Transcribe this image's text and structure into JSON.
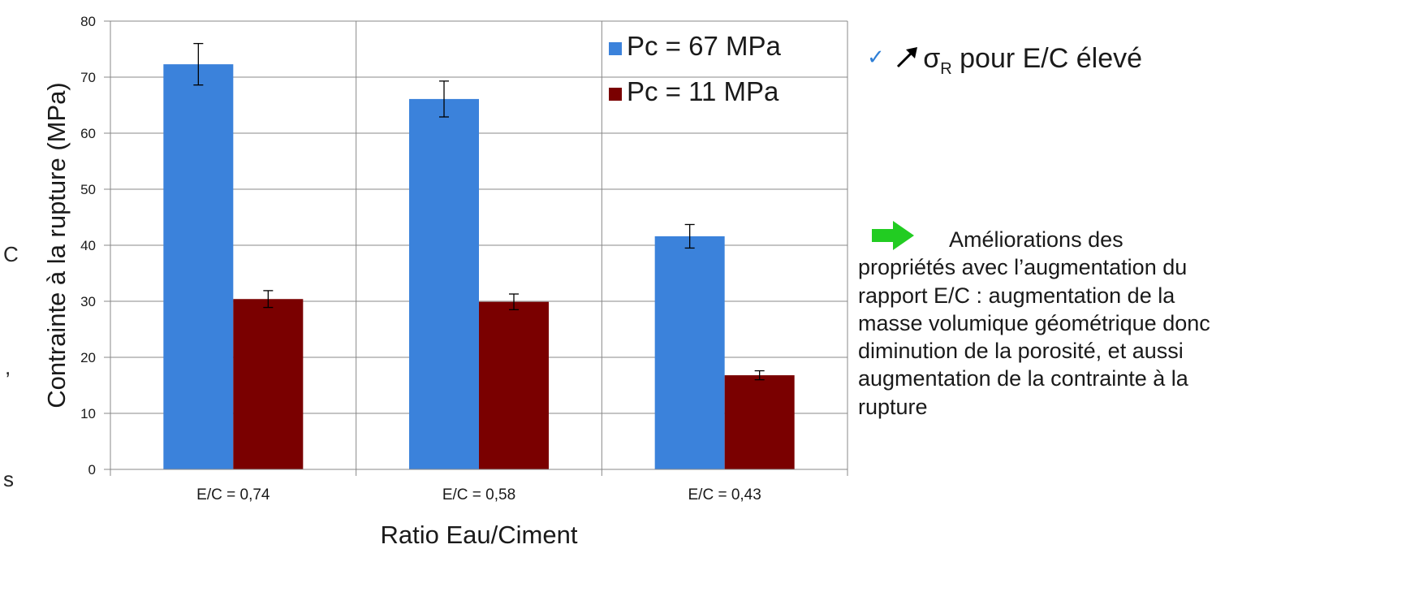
{
  "edge_text": {
    "c": "C",
    "comma": ",",
    "s": "s"
  },
  "notes": {
    "first_prefix": "",
    "sigma": "σ",
    "sigma_sub": "R",
    "first_suffix": " pour E/C élevé",
    "second": "Améliorations des propriétés avec l’augmentation du rapport E/C : augmentation de la masse volumique géométrique donc diminution de la porosité, et aussi augmentation de la contrainte à la rupture",
    "check_icon": "check-icon",
    "rise_icon": "diagonal-up-arrow-icon",
    "arrow_icon": "green-right-arrow-icon",
    "check_color": "#2f7fd6",
    "arrow_color": "#22cc22"
  },
  "chart_data": {
    "type": "bar",
    "title": "",
    "xlabel": "Ratio Eau/Ciment",
    "ylabel": "Contrainte à la rupture (MPa)",
    "ylim": [
      0,
      80
    ],
    "yticks": [
      0,
      10,
      20,
      30,
      40,
      50,
      60,
      70,
      80
    ],
    "grid": true,
    "legend_position": "top-right",
    "categories": [
      "E/C = 0,74",
      "E/C = 0,58",
      "E/C = 0,43"
    ],
    "series": [
      {
        "name": "Pc = 67 MPa",
        "color": "#3b82db",
        "values": [
          72.3,
          66.1,
          41.6
        ],
        "error": [
          3.7,
          3.2,
          2.1
        ]
      },
      {
        "name": "Pc = 11 MPa",
        "color": "#7a0000",
        "values": [
          30.4,
          29.9,
          16.8
        ],
        "error": [
          1.5,
          1.4,
          0.8
        ]
      }
    ]
  }
}
